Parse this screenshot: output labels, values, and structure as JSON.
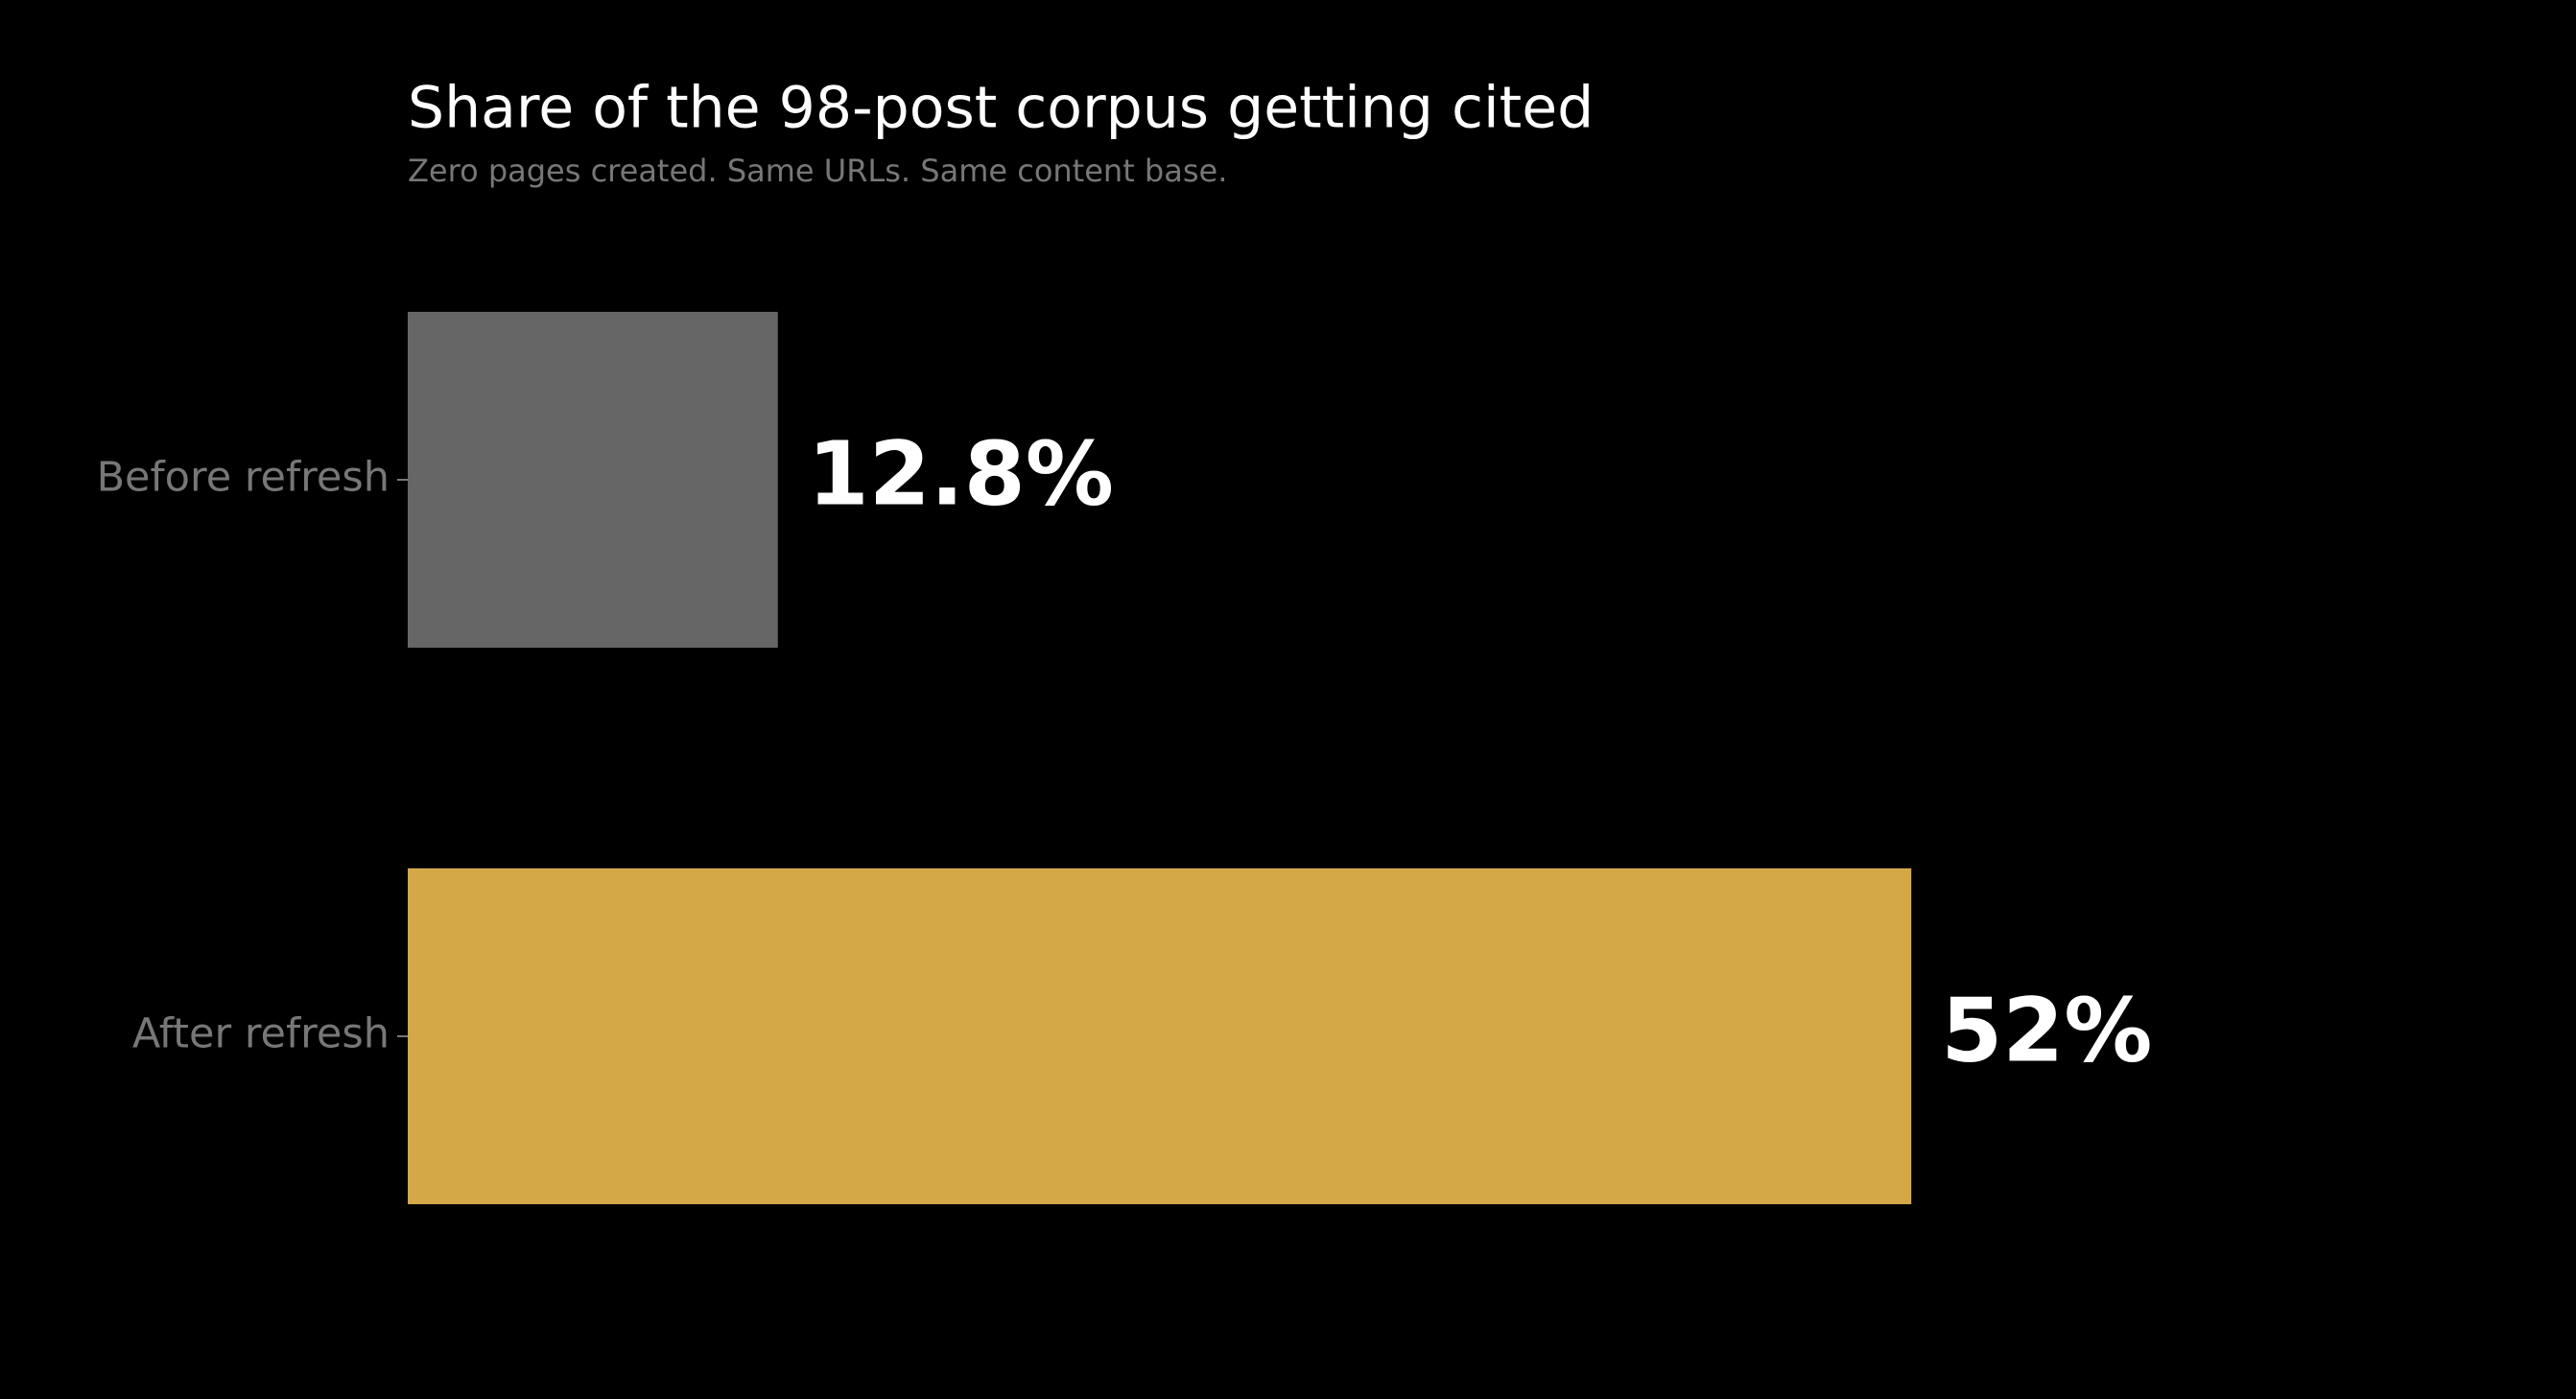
{
  "chart_data": {
    "type": "barh",
    "title": "Share of the 98-post corpus getting cited",
    "subtitle": "Zero pages created. Same URLs. Same content base.",
    "categories": [
      "Before refresh",
      "After refresh"
    ],
    "values": [
      12.8,
      52
    ],
    "value_labels": [
      "12.8%",
      "52%"
    ],
    "colors": [
      "#666666",
      "#d4a847"
    ],
    "xlim": [
      0,
      65
    ]
  }
}
